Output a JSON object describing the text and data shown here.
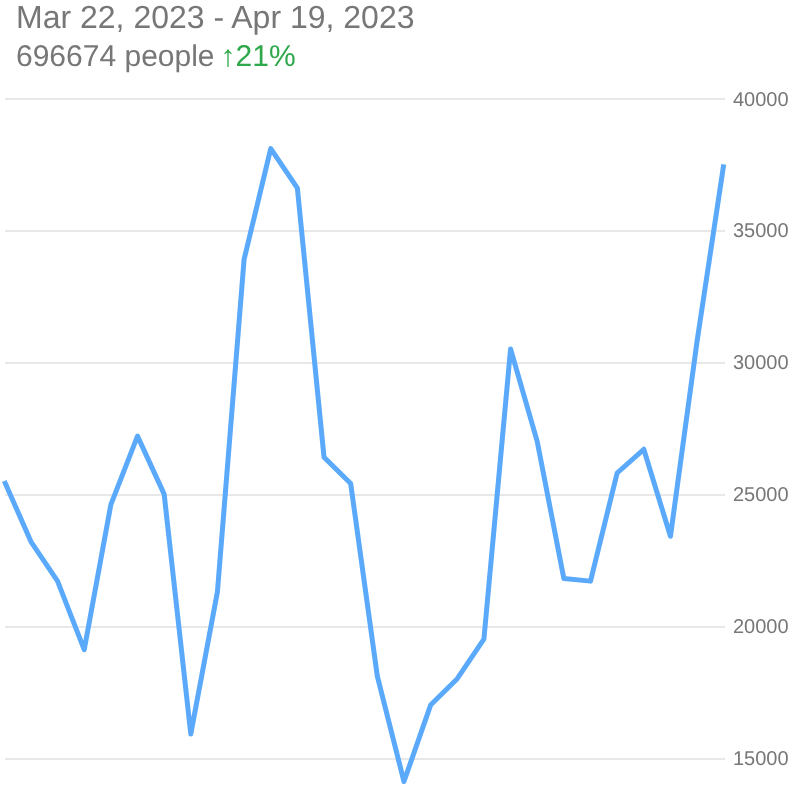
{
  "chart_data": {
    "type": "line",
    "title": "Mar 22, 2023 - Apr 19, 2023",
    "subtitle": "696674 people",
    "annotations": [
      "↑21%"
    ],
    "categories": [
      null,
      null,
      null,
      null,
      null,
      null,
      null,
      null,
      null,
      null,
      null,
      null,
      null,
      null,
      null,
      null,
      null,
      null,
      null,
      null,
      null,
      null,
      null,
      null,
      null,
      null,
      null,
      null
    ],
    "series": [
      {
        "color": "#5aa9fa",
        "values": [
          25500,
          23200,
          21700,
          19100,
          24600,
          27200,
          25000,
          15900,
          21300,
          33900,
          38100,
          36600,
          26400,
          25400,
          18100,
          14100,
          17000,
          18000,
          19500,
          30500,
          27000,
          21800,
          21700,
          25800,
          26700,
          23400,
          30800,
          37500
        ]
      }
    ],
    "ylim": [
      13400,
      40400
    ],
    "yticks": [
      15000,
      20000,
      25000,
      30000,
      35000,
      40000
    ],
    "grid": "y",
    "tick_labels": "y",
    "marker": "none",
    "line_style": "solid"
  }
}
